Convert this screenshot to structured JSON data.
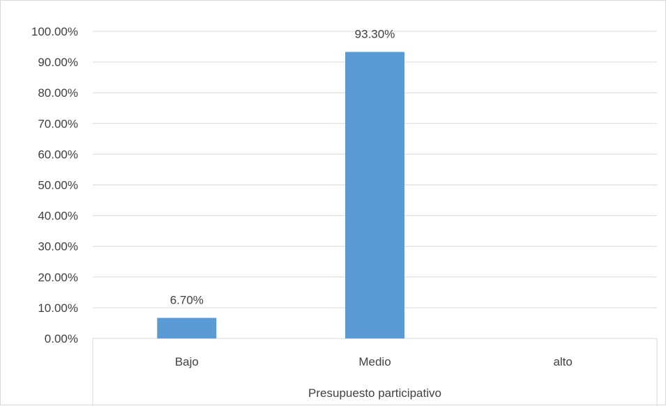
{
  "chart_data": {
    "type": "bar",
    "title": "",
    "xlabel": "",
    "ylabel": "",
    "categories": [
      "Bajo",
      "Medio",
      "alto"
    ],
    "group_label": "Presupuesto participativo",
    "values": [
      6.7,
      93.3,
      null
    ],
    "data_labels": [
      "6.70%",
      "93.30%",
      ""
    ],
    "yticks": [
      "0.00%",
      "10.00%",
      "20.00%",
      "30.00%",
      "40.00%",
      "50.00%",
      "60.00%",
      "70.00%",
      "80.00%",
      "90.00%",
      "100.00%"
    ],
    "ylim": [
      0,
      100
    ],
    "grid": true,
    "legend": "none",
    "bar_color": "#5b9bd5",
    "grid_color": "#d9d9d9"
  }
}
